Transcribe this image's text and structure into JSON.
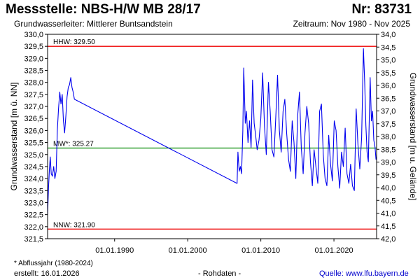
{
  "header": {
    "title": "Messstelle: NBS-H/W MB 28/17",
    "nr": "Nr: 83731",
    "aquifer": "Grundwasserleiter:   Mittlerer Buntsandstein",
    "period": "Zeitraum: Nov 1980 - Nov 2025"
  },
  "footer": {
    "footnote": "* Abflussjahr (1980-2024)",
    "created": "erstellt:  16.01.2026",
    "data_type": "- Rohdaten -",
    "source": "Quelle: www.lfu.bayern.de"
  },
  "colors": {
    "series": "#0000ee",
    "hnw_lines": "#ee0000",
    "mw_line": "#008800",
    "source_link": "#0000cc"
  },
  "chart_data": {
    "type": "line",
    "ylabel": "Grundwasserstand [m ü. NN]",
    "y2label": "Grundwasserstand [m u. Gelände]",
    "ylim": [
      321.5,
      330.0
    ],
    "y2lim": [
      42.0,
      34.0
    ],
    "xlim": [
      "1980-11-01",
      "2025-11-01"
    ],
    "grid": false,
    "y_ticks": [
      "330,0",
      "329,5",
      "329,0",
      "328,5",
      "328,0",
      "327,5",
      "327,0",
      "326,5",
      "326,0",
      "325,5",
      "325,0",
      "324,5",
      "324,0",
      "323,5",
      "323,0",
      "322,5",
      "322,0",
      "321,5"
    ],
    "y2_ticks": [
      "34,0",
      "34,5",
      "35,0",
      "35,5",
      "36,0",
      "36,5",
      "37,0",
      "37,5",
      "38,0",
      "38,5",
      "39,0",
      "39,5",
      "40,0",
      "40,5",
      "41,0",
      "41,5",
      "42,0"
    ],
    "x_ticks": [
      {
        "label": "01.01.1990",
        "x": "1990-01-01"
      },
      {
        "label": "01.01.2000",
        "x": "2000-01-01"
      },
      {
        "label": "01.01.2010",
        "x": "2010-01-01"
      },
      {
        "label": "01.01.2020",
        "x": "2020-01-01"
      }
    ],
    "reference_lines": [
      {
        "name": "HHW",
        "label": "HHW: 329.50",
        "y": 329.5,
        "color": "#ee0000"
      },
      {
        "name": "MW",
        "label": "MW*: 325.27",
        "y": 325.27,
        "color": "#008800"
      },
      {
        "name": "NNW",
        "label": "NNW: 321.90",
        "y": 321.9,
        "color": "#ee0000"
      }
    ],
    "series": [
      {
        "color": "#0000ee",
        "points": [
          [
            "1980-11-01",
            322.5
          ],
          [
            "1980-12-15",
            323.6
          ],
          [
            "1981-02-01",
            324.4
          ],
          [
            "1981-03-15",
            324.9
          ],
          [
            "1981-05-01",
            324.2
          ],
          [
            "1981-07-01",
            324.1
          ],
          [
            "1981-09-01",
            324.5
          ],
          [
            "1981-11-01",
            324.0
          ],
          [
            "1982-01-01",
            324.3
          ],
          [
            "1982-03-01",
            326.0
          ],
          [
            "1982-05-01",
            326.9
          ],
          [
            "1982-07-01",
            327.6
          ],
          [
            "1982-09-01",
            327.1
          ],
          [
            "1982-11-01",
            327.5
          ],
          [
            "1983-01-01",
            326.4
          ],
          [
            "1983-03-01",
            325.9
          ],
          [
            "1983-05-01",
            326.6
          ],
          [
            "1983-07-01",
            327.4
          ],
          [
            "1983-09-01",
            327.8
          ],
          [
            "1983-11-01",
            327.9
          ],
          [
            "1984-01-01",
            328.2
          ],
          [
            "1984-03-01",
            327.8
          ],
          [
            "1984-05-01",
            327.6
          ],
          [
            "1984-07-01",
            327.3
          ],
          [
            "2006-10-01",
            323.8
          ],
          [
            "2006-11-15",
            325.1
          ],
          [
            "2007-01-15",
            324.3
          ],
          [
            "2007-03-15",
            324.5
          ],
          [
            "2007-05-15",
            324.2
          ],
          [
            "2007-07-15",
            326.0
          ],
          [
            "2007-09-01",
            328.6
          ],
          [
            "2007-11-15",
            326.3
          ],
          [
            "2008-01-15",
            326.8
          ],
          [
            "2008-04-01",
            325.5
          ],
          [
            "2008-06-15",
            326.4
          ],
          [
            "2008-09-01",
            325.3
          ],
          [
            "2008-11-15",
            328.1
          ],
          [
            "2009-02-01",
            326.3
          ],
          [
            "2009-04-15",
            325.8
          ],
          [
            "2009-07-01",
            325.2
          ],
          [
            "2009-10-01",
            325.6
          ],
          [
            "2010-01-01",
            326.5
          ],
          [
            "2010-04-01",
            328.4
          ],
          [
            "2010-07-01",
            326.2
          ],
          [
            "2010-10-01",
            325.0
          ],
          [
            "2011-01-15",
            328.0
          ],
          [
            "2011-04-15",
            326.8
          ],
          [
            "2011-07-15",
            325.2
          ],
          [
            "2011-10-15",
            324.9
          ],
          [
            "2012-01-15",
            326.5
          ],
          [
            "2012-04-15",
            328.3
          ],
          [
            "2012-07-15",
            326.0
          ],
          [
            "2012-10-15",
            325.1
          ],
          [
            "2013-01-15",
            326.8
          ],
          [
            "2013-04-15",
            327.3
          ],
          [
            "2013-07-15",
            325.9
          ],
          [
            "2013-10-15",
            324.8
          ],
          [
            "2014-01-15",
            324.3
          ],
          [
            "2014-04-15",
            326.4
          ],
          [
            "2014-07-15",
            325.5
          ],
          [
            "2014-10-15",
            324.0
          ],
          [
            "2015-01-15",
            326.6
          ],
          [
            "2015-04-15",
            327.6
          ],
          [
            "2015-07-15",
            325.3
          ],
          [
            "2015-10-15",
            324.2
          ],
          [
            "2016-01-15",
            325.9
          ],
          [
            "2016-04-15",
            327.0
          ],
          [
            "2016-07-15",
            326.3
          ],
          [
            "2016-10-15",
            324.7
          ],
          [
            "2017-01-15",
            323.7
          ],
          [
            "2017-04-15",
            325.2
          ],
          [
            "2017-07-15",
            324.5
          ],
          [
            "2017-10-15",
            323.8
          ],
          [
            "2018-01-15",
            326.8
          ],
          [
            "2018-04-15",
            327.1
          ],
          [
            "2018-07-15",
            325.0
          ],
          [
            "2018-10-15",
            324.0
          ],
          [
            "2019-01-15",
            323.7
          ],
          [
            "2019-04-15",
            325.8
          ],
          [
            "2019-07-15",
            324.6
          ],
          [
            "2019-10-15",
            323.9
          ],
          [
            "2020-01-15",
            326.4
          ],
          [
            "2020-04-15",
            326.0
          ],
          [
            "2020-07-15",
            324.5
          ],
          [
            "2020-10-15",
            323.6
          ],
          [
            "2021-01-15",
            325.1
          ],
          [
            "2021-04-15",
            324.5
          ],
          [
            "2021-07-15",
            326.1
          ],
          [
            "2021-10-15",
            324.2
          ],
          [
            "2022-01-15",
            323.8
          ],
          [
            "2022-04-15",
            324.6
          ],
          [
            "2022-07-15",
            323.7
          ],
          [
            "2022-10-15",
            323.5
          ],
          [
            "2023-01-15",
            326.9
          ],
          [
            "2023-04-15",
            325.4
          ],
          [
            "2023-07-15",
            324.4
          ],
          [
            "2023-10-15",
            325.7
          ],
          [
            "2024-01-15",
            329.4
          ],
          [
            "2024-03-15",
            328.0
          ],
          [
            "2024-05-15",
            326.2
          ],
          [
            "2024-07-15",
            325.1
          ],
          [
            "2024-09-15",
            324.7
          ],
          [
            "2024-12-15",
            328.2
          ],
          [
            "2025-02-15",
            326.4
          ],
          [
            "2025-04-15",
            326.8
          ],
          [
            "2025-06-15",
            325.6
          ],
          [
            "2025-08-15",
            325.3
          ],
          [
            "2025-10-01",
            324.8
          ],
          [
            "2025-11-01",
            324.9
          ]
        ]
      }
    ]
  }
}
